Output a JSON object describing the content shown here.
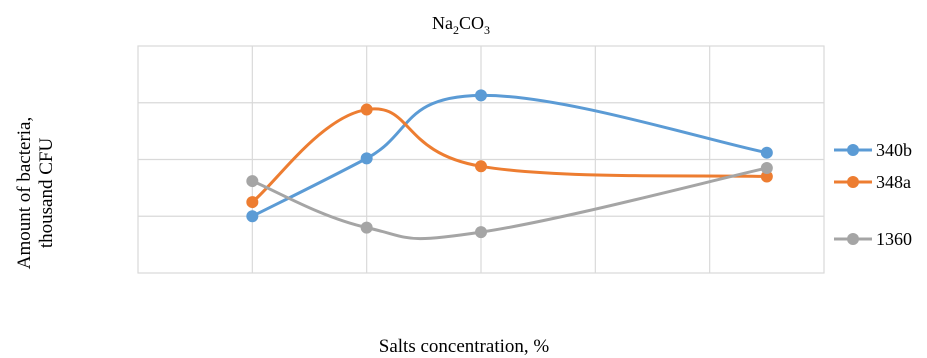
{
  "chart_data": {
    "type": "line",
    "title": "Na2CO3",
    "title_parts": {
      "el1": "Na",
      "sub1": "2",
      "el2": "CO",
      "sub2": "3"
    },
    "xlabel": "Salts concentration, %",
    "ylabel_lines": [
      "Amount of bacteria,",
      "thousand CFU"
    ],
    "x": [
      1,
      2,
      3,
      5.5
    ],
    "xlim": [
      0,
      6
    ],
    "ylim": [
      0,
      4
    ],
    "grid": true,
    "legend_position": "right",
    "series": [
      {
        "name": "340b",
        "color": "#5b9bd5",
        "values": [
          1.0,
          2.02,
          3.13,
          2.12
        ]
      },
      {
        "name": "348a",
        "color": "#ed7d31",
        "values": [
          1.25,
          2.88,
          1.88,
          1.7
        ]
      },
      {
        "name": "1360",
        "color": "#a5a5a5",
        "values": [
          1.62,
          0.8,
          0.72,
          1.85
        ]
      }
    ]
  }
}
